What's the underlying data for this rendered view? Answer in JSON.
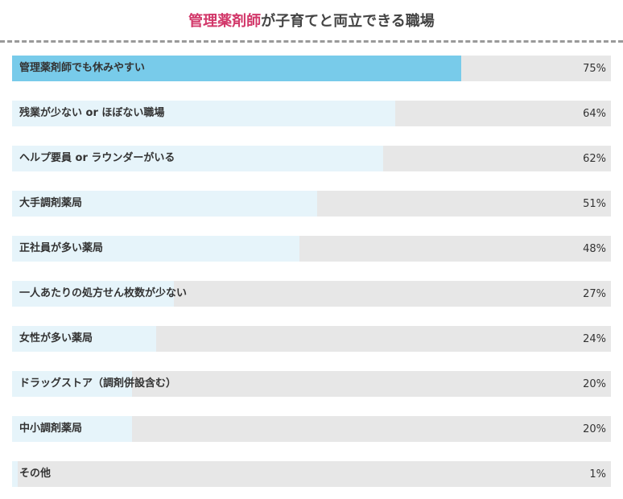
{
  "header": {
    "title_highlight": "管理薬剤師",
    "title_rest": "が子育てと両立できる職場"
  },
  "colors": {
    "highlight_text": "#d2386a",
    "top_bar": "#78cbea",
    "bar": "#e6f4fa",
    "track": "#e7e7e7"
  },
  "chart_data": {
    "type": "bar",
    "orientation": "horizontal",
    "title": "管理薬剤師が子育てと両立できる職場",
    "unit": "%",
    "xlim": [
      0,
      100
    ],
    "categories": [
      "管理薬剤師でも休みやすい",
      "残業が少ない or ほぼない職場",
      "ヘルプ要員 or ラウンダーがいる",
      "大手調剤薬局",
      "正社員が多い薬局",
      "一人あたりの処方せん枚数が少ない",
      "女性が多い薬局",
      "ドラッグストア（調剤併設含む）",
      "中小調剤薬局",
      "その他"
    ],
    "values": [
      75,
      64,
      62,
      51,
      48,
      27,
      24,
      20,
      20,
      1
    ],
    "value_labels": [
      "75%",
      "64%",
      "62%",
      "51%",
      "48%",
      "27%",
      "24%",
      "20%",
      "20%",
      "1%"
    ]
  }
}
